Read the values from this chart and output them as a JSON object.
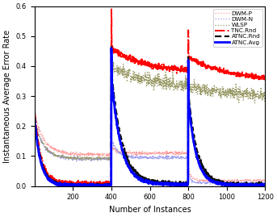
{
  "title": "",
  "xlabel": "Number of Instances",
  "ylabel": "Instantaneous Average Error Rate",
  "xlim": [
    0,
    1200
  ],
  "ylim": [
    0,
    0.6
  ],
  "yticks": [
    0,
    0.1,
    0.2,
    0.3,
    0.4,
    0.5,
    0.6
  ],
  "xticks": [
    200,
    400,
    600,
    800,
    1000,
    1200
  ],
  "colors": {
    "DWM-P": "#FF9999",
    "DWM-N": "#9999EE",
    "WLSP": "#999966",
    "TNC.Rnd": "#FF0000",
    "ATNC.Rnd": "#111111",
    "ATNC.Avg": "#0000FF"
  },
  "linewidths": {
    "DWM-P": 0.9,
    "DWM-N": 0.9,
    "WLSP": 0.9,
    "TNC.Rnd": 1.4,
    "ATNC.Rnd": 1.6,
    "ATNC.Avg": 2.0
  },
  "background_color": "#ffffff"
}
